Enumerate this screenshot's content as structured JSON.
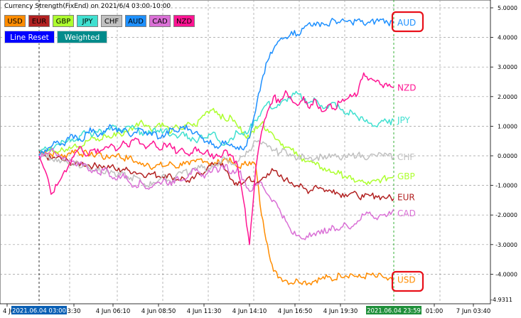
{
  "indicator_title": "Currency Strength(FixEnd) on 2021/6/4 03:00-10:00",
  "buttons": {
    "currencies": [
      {
        "label": "USD",
        "color": "#FF8C00"
      },
      {
        "label": "EUR",
        "color": "#B22222"
      },
      {
        "label": "GBP",
        "color": "#ADFF2F"
      },
      {
        "label": "JPY",
        "color": "#40E0D0"
      },
      {
        "label": "CHF",
        "color": "#C0C0C0"
      },
      {
        "label": "AUD",
        "color": "#1E90FF"
      },
      {
        "label": "CAD",
        "color": "#DA70D6"
      },
      {
        "label": "NZD",
        "color": "#FF1493"
      }
    ],
    "line_reset": "Line Reset",
    "weighted": "Weighted"
  },
  "chart_data": {
    "type": "line",
    "y_ticks": [
      "5.0000",
      "4.0000",
      "3.0000",
      "2.0000",
      "1.0000",
      "0.0000",
      "-1.0000",
      "-2.0000",
      "-3.0000",
      "-4.0000"
    ],
    "y_bottom_label": "-4.9311",
    "ylim": [
      -4.9311,
      5.0
    ],
    "x_ticks": [
      "4 Ju",
      "3:30",
      "4 Jun 06:10",
      "4 Jun 08:50",
      "4 Jun 11:30",
      "4 Jun 14:10",
      "4 Jun 16:50",
      "4 Jun 19:30",
      "01:00",
      "7 Jun 03:40"
    ],
    "start_marker": "2021.06.04 03:00",
    "end_marker": "2021.06.04 23:59",
    "series": [
      {
        "name": "USD",
        "color": "#FF8C00",
        "values": [
          0.1,
          0.15,
          0.05,
          0.1,
          -0.05,
          0.1,
          0.2,
          0.05,
          0.1,
          0.0,
          0.1,
          -0.1,
          0.0,
          0.05,
          -0.1,
          -0.05,
          -0.2,
          -0.3,
          -0.25,
          -0.4,
          -0.3,
          -0.35,
          -0.25,
          -0.4,
          -0.2,
          -0.3,
          -0.2,
          -0.1,
          -0.2,
          -0.3,
          -0.2,
          -0.1,
          -0.2,
          -0.4,
          -0.3,
          -0.2,
          -0.3,
          -2.0,
          -3.0,
          -3.9,
          -4.1,
          -4.2,
          -4.3,
          -4.2,
          -4.25,
          -4.3,
          -4.2,
          -4.15,
          -4.1,
          -4.2,
          -4.0,
          -4.05,
          -4.0,
          -4.1,
          -4.1,
          -4.0,
          -4.1,
          -4.05,
          -4.2,
          -4.2
        ]
      },
      {
        "name": "EUR",
        "color": "#B22222",
        "values": [
          0.1,
          0.0,
          -0.1,
          -0.05,
          -0.15,
          -0.2,
          -0.3,
          -0.25,
          -0.3,
          -0.35,
          -0.3,
          -0.4,
          -0.35,
          -0.5,
          -0.45,
          -0.5,
          -0.55,
          -0.6,
          -0.65,
          -0.6,
          -0.7,
          -0.65,
          -0.7,
          -0.8,
          -0.75,
          -0.9,
          -0.7,
          -0.6,
          -0.4,
          -0.3,
          -0.2,
          -0.5,
          -0.8,
          -1.0,
          -0.9,
          -0.7,
          -1.0,
          -0.8,
          -0.6,
          -0.5,
          -0.7,
          -0.8,
          -0.9,
          -1.0,
          -1.1,
          -1.2,
          -1.0,
          -1.1,
          -1.2,
          -1.15,
          -1.3,
          -1.3,
          -1.25,
          -1.35,
          -1.4,
          -1.35,
          -1.35,
          -1.4,
          -1.4,
          -1.45
        ]
      },
      {
        "name": "GBP",
        "color": "#ADFF2F",
        "values": [
          0.0,
          0.2,
          0.3,
          0.1,
          0.2,
          0.3,
          0.4,
          0.3,
          0.5,
          0.6,
          0.5,
          0.7,
          0.6,
          0.8,
          0.7,
          0.9,
          1.0,
          1.2,
          1.0,
          0.9,
          1.1,
          1.0,
          0.8,
          1.0,
          0.9,
          1.1,
          1.0,
          1.3,
          1.5,
          1.6,
          1.4,
          1.2,
          1.3,
          1.0,
          0.8,
          0.6,
          1.0,
          1.1,
          0.9,
          0.7,
          0.5,
          0.3,
          0.2,
          0.0,
          -0.1,
          -0.2,
          -0.3,
          -0.4,
          -0.5,
          -0.55,
          -0.6,
          -0.7,
          -0.8,
          -0.85,
          -0.9,
          -0.95,
          -0.85,
          -0.8,
          -0.75,
          -0.7
        ]
      },
      {
        "name": "JPY",
        "color": "#40E0D0",
        "values": [
          0.2,
          0.3,
          0.25,
          0.4,
          0.5,
          0.6,
          0.5,
          0.7,
          0.8,
          0.7,
          0.9,
          0.8,
          1.0,
          0.9,
          0.8,
          1.0,
          0.9,
          0.8,
          0.7,
          0.9,
          0.8,
          0.9,
          0.7,
          0.6,
          0.8,
          0.6,
          0.5,
          0.7,
          0.6,
          0.8,
          0.5,
          0.4,
          0.6,
          0.8,
          0.7,
          0.9,
          1.2,
          1.5,
          1.8,
          1.6,
          1.7,
          1.9,
          2.0,
          2.1,
          1.9,
          1.8,
          1.9,
          1.7,
          1.6,
          1.8,
          1.6,
          1.4,
          1.5,
          1.3,
          1.2,
          1.1,
          1.0,
          1.2,
          1.1,
          1.2
        ]
      },
      {
        "name": "CHF",
        "color": "#C0C0C0",
        "values": [
          0.0,
          0.1,
          -0.1,
          -0.2,
          -0.1,
          -0.3,
          -0.2,
          -0.4,
          -0.3,
          -0.5,
          -0.4,
          -0.6,
          -0.5,
          -0.7,
          -0.6,
          -0.8,
          -0.7,
          -0.9,
          -1.0,
          -0.9,
          -0.8,
          -0.7,
          -0.9,
          -0.6,
          -0.5,
          -0.6,
          -0.4,
          -0.3,
          -0.5,
          -0.4,
          -0.2,
          -0.1,
          -0.3,
          -0.2,
          0.0,
          0.2,
          0.5,
          0.4,
          0.3,
          0.2,
          0.1,
          0.2,
          0.0,
          -0.1,
          0.0,
          -0.05,
          -0.1,
          0.0,
          -0.05,
          0.0,
          -0.1,
          -0.05,
          0.0,
          0.05,
          -0.05,
          0.0,
          0.0,
          0.05,
          0.0,
          -0.05
        ]
      },
      {
        "name": "AUD",
        "color": "#1E90FF",
        "values": [
          0.0,
          0.2,
          0.3,
          0.5,
          0.4,
          0.6,
          0.7,
          0.5,
          0.8,
          0.9,
          0.7,
          0.8,
          1.0,
          0.8,
          0.9,
          0.7,
          0.8,
          0.9,
          0.7,
          0.8,
          0.6,
          0.7,
          0.9,
          0.8,
          1.0,
          0.9,
          0.8,
          0.6,
          0.5,
          0.4,
          0.3,
          0.5,
          0.4,
          0.3,
          0.2,
          0.6,
          1.5,
          2.5,
          3.2,
          3.6,
          3.9,
          4.0,
          4.2,
          4.1,
          4.3,
          4.5,
          4.4,
          4.5,
          4.4,
          4.6,
          4.5,
          4.55,
          4.5,
          4.6,
          4.45,
          4.5,
          4.55,
          4.6,
          4.5,
          4.5
        ]
      },
      {
        "name": "CAD",
        "color": "#DA70D6",
        "values": [
          0.0,
          0.1,
          0.2,
          0.0,
          -0.1,
          -0.2,
          -0.3,
          -0.2,
          -0.4,
          -0.5,
          -0.6,
          -0.4,
          -0.7,
          -0.8,
          -0.6,
          -0.9,
          -1.0,
          -0.9,
          -1.1,
          -1.0,
          -0.9,
          -0.8,
          -1.0,
          -0.7,
          -0.8,
          -0.6,
          -0.5,
          -0.7,
          -0.6,
          -0.4,
          -0.5,
          -0.3,
          -0.6,
          -0.4,
          -0.8,
          -1.2,
          -1.0,
          -0.9,
          -1.3,
          -1.5,
          -1.8,
          -2.2,
          -2.6,
          -2.7,
          -2.8,
          -2.6,
          -2.7,
          -2.5,
          -2.6,
          -2.4,
          -2.5,
          -2.3,
          -2.4,
          -2.2,
          -2.0,
          -1.9,
          -2.1,
          -2.0,
          -2.0,
          -1.8
        ]
      },
      {
        "name": "NZD",
        "color": "#FF1493",
        "values": [
          0.0,
          -0.5,
          -1.3,
          -1.0,
          -0.6,
          -0.3,
          0.1,
          0.3,
          0.0,
          0.2,
          0.1,
          0.3,
          0.4,
          0.2,
          0.5,
          0.3,
          0.6,
          0.4,
          0.3,
          0.5,
          0.2,
          0.4,
          0.3,
          0.1,
          0.2,
          0.0,
          0.3,
          0.1,
          0.2,
          -0.1,
          0.0,
          0.2,
          0.0,
          -0.3,
          -1.5,
          -3.0,
          -0.5,
          0.8,
          1.5,
          2.0,
          1.8,
          2.2,
          1.9,
          1.7,
          2.0,
          1.6,
          1.9,
          1.5,
          1.7,
          1.6,
          1.8,
          1.9,
          2.0,
          2.1,
          2.8,
          2.6,
          2.5,
          2.4,
          2.35,
          2.3
        ]
      }
    ]
  }
}
